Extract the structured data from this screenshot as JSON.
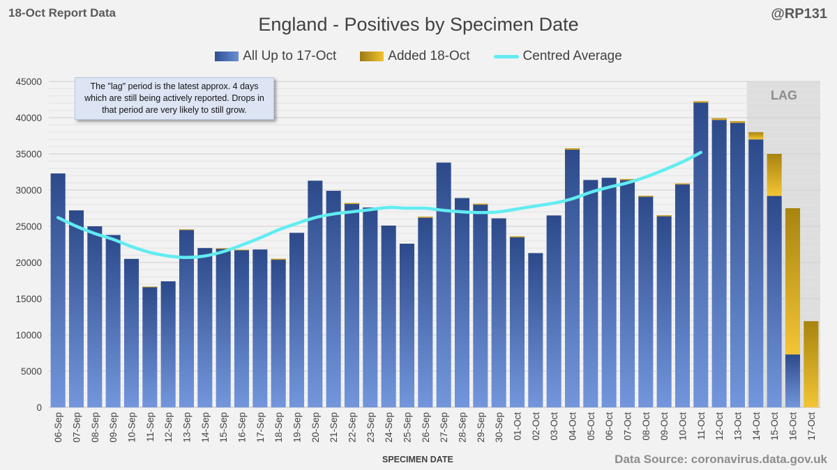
{
  "header": {
    "report_tag": "18-Oct Report Data",
    "handle": "@RP131"
  },
  "chart_data": {
    "type": "bar",
    "title": "England - Positives by Specimen Date",
    "xlabel": "SPECIMEN DATE",
    "ylabel": "",
    "ylim": [
      0,
      45000
    ],
    "yticks": [
      0,
      5000,
      10000,
      15000,
      20000,
      25000,
      30000,
      35000,
      40000,
      45000
    ],
    "categories": [
      "06-Sep",
      "07-Sep",
      "08-Sep",
      "09-Sep",
      "10-Sep",
      "11-Sep",
      "12-Sep",
      "13-Sep",
      "14-Sep",
      "15-Sep",
      "16-Sep",
      "17-Sep",
      "18-Sep",
      "19-Sep",
      "20-Sep",
      "21-Sep",
      "22-Sep",
      "23-Sep",
      "24-Sep",
      "25-Sep",
      "26-Sep",
      "27-Sep",
      "28-Sep",
      "29-Sep",
      "30-Sep",
      "01-Oct",
      "02-Oct",
      "03-Oct",
      "04-Oct",
      "05-Oct",
      "06-Oct",
      "07-Oct",
      "08-Oct",
      "09-Oct",
      "10-Oct",
      "11-Oct",
      "12-Oct",
      "13-Oct",
      "14-Oct",
      "15-Oct",
      "16-Oct",
      "17-Oct"
    ],
    "stacked": true,
    "series": [
      {
        "name": "All Up to 17-Oct",
        "color": "#3a5da8",
        "values": [
          32300,
          27200,
          25000,
          23800,
          20500,
          16600,
          17400,
          24500,
          22000,
          21900,
          21700,
          21800,
          20400,
          24100,
          31300,
          29900,
          28100,
          27600,
          25100,
          22600,
          26200,
          33800,
          28900,
          28000,
          26100,
          23500,
          21300,
          26500,
          35600,
          31400,
          31700,
          31400,
          29100,
          26400,
          30800,
          42100,
          39700,
          39300,
          37000,
          29200,
          7300,
          0
        ]
      },
      {
        "name": "Added 18-Oct",
        "color": "#d4a622",
        "values": [
          0,
          0,
          0,
          0,
          0,
          50,
          0,
          50,
          0,
          50,
          50,
          0,
          100,
          0,
          0,
          0,
          100,
          0,
          0,
          0,
          100,
          0,
          0,
          100,
          0,
          100,
          0,
          0,
          150,
          0,
          0,
          100,
          100,
          100,
          100,
          150,
          200,
          200,
          1000,
          5800,
          20200,
          11900
        ]
      },
      {
        "name": "Centred Average",
        "type": "line",
        "color": "#61ecf2",
        "values": [
          26200,
          25000,
          24000,
          23200,
          22200,
          21400,
          20900,
          20700,
          20900,
          21500,
          22400,
          23400,
          24500,
          25400,
          26200,
          26700,
          27000,
          27300,
          27600,
          27500,
          27500,
          27200,
          27000,
          26900,
          27000,
          27400,
          27800,
          28200,
          28800,
          29700,
          30400,
          31000,
          31800,
          32800,
          33900,
          35200,
          null,
          null,
          null,
          null,
          null,
          null
        ]
      }
    ],
    "lag_shading": {
      "label": "LAG",
      "from": "14-Oct",
      "to": "17-Oct"
    },
    "annotation": "The \"lag\" period is the latest approx. 4 days which are still being actively reported. Drops in that period are very likely to still grow.",
    "legend_position": "top-center"
  },
  "footer": {
    "source": "Data Source: coronavirus.data.gov.uk"
  },
  "colors": {
    "background": "#f2f2f2",
    "blue_dark": "#2c4a8a",
    "blue_light": "#7396dc",
    "gold_dark": "#a8840f",
    "gold_light": "#f3c535",
    "avg_line": "#61ecf2",
    "lag_shade": "#dedede"
  }
}
